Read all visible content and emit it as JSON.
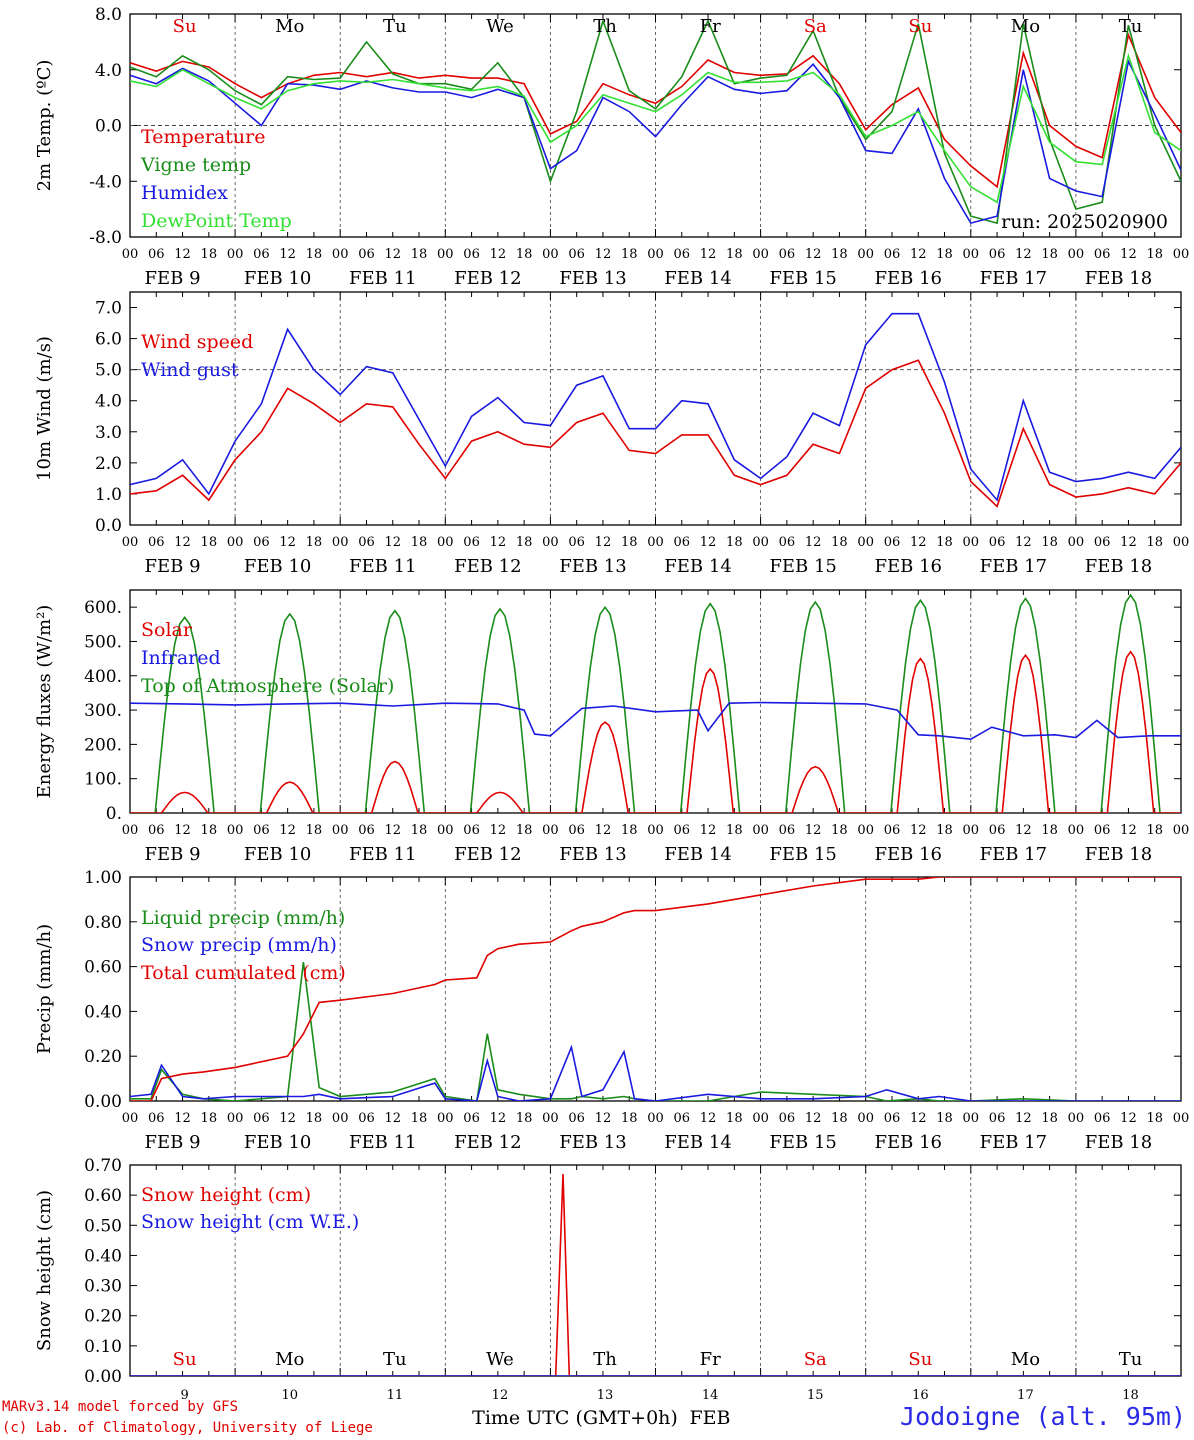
{
  "colors": {
    "red": "#e00000",
    "green": "#1a8c1a",
    "blue": "#1a1ae0",
    "lightgreen": "#33e033",
    "axis": "#000000",
    "grid": "#444444"
  },
  "days": [
    "Su",
    "Mo",
    "Tu",
    "We",
    "Th",
    "Fr",
    "Sa",
    "Su",
    "Mo",
    "Tu"
  ],
  "day_colors": [
    "#e00000",
    "#000000",
    "#000000",
    "#000000",
    "#000000",
    "#000000",
    "#e00000",
    "#e00000",
    "#000000",
    "#000000"
  ],
  "date_labels": [
    "FEB  9",
    "FEB 10",
    "FEB 11",
    "FEB 12",
    "FEB 13",
    "FEB 14",
    "FEB 15",
    "FEB 16",
    "FEB 17",
    "FEB 18"
  ],
  "hour_labels": [
    "00",
    "06",
    "12",
    "18"
  ],
  "day_numbers": [
    "9",
    "10",
    "11",
    "12",
    "13",
    "14",
    "15",
    "16",
    "17",
    "18"
  ],
  "run_label": "run: 2025020900",
  "footer": {
    "credit1": "MARv3.14 model forced by GFS",
    "credit2": "(c) Lab. of Climatology, University of Liege",
    "time_label": "Time UTC (GMT+0h)",
    "month": "FEB",
    "station": "Jodoigne (alt. 95m)"
  },
  "chart_data": [
    {
      "type": "line",
      "ylabel": "2m Temp. (ºC)",
      "ylim": [
        -8,
        8
      ],
      "yticks": [
        "8.0",
        "4.0",
        "0.0",
        "-4.0",
        "-8.0"
      ],
      "ytick_values": [
        8,
        4,
        0,
        -4,
        -8
      ],
      "ref_line": 0,
      "x_days": [
        0,
        0.25,
        0.5,
        0.75,
        1,
        1.25,
        1.5,
        1.75,
        2,
        2.25,
        2.5,
        2.75,
        3,
        3.25,
        3.5,
        3.75,
        4,
        4.25,
        4.5,
        4.75,
        5,
        5.25,
        5.5,
        5.75,
        6,
        6.25,
        6.5,
        6.75,
        7,
        7.25,
        7.5,
        7.75,
        8,
        8.25,
        8.5,
        8.75,
        9,
        9.25,
        9.5,
        9.75,
        10
      ],
      "series": [
        {
          "name": "Temperature",
          "color": "red",
          "values": [
            4.5,
            3.9,
            4.6,
            4.2,
            3.0,
            2.0,
            3.0,
            3.6,
            3.8,
            3.5,
            3.8,
            3.4,
            3.6,
            3.4,
            3.4,
            3.0,
            -0.6,
            0.3,
            3.0,
            2.2,
            1.6,
            2.8,
            4.7,
            3.8,
            3.6,
            3.7,
            5.0,
            3.0,
            -0.3,
            1.5,
            2.7,
            -1.0,
            -2.9,
            -4.4,
            5.2,
            0.0,
            -1.5,
            -2.3,
            6.5,
            2.0,
            -0.5
          ]
        },
        {
          "name": "Vigne temp",
          "color": "green",
          "values": [
            4.2,
            3.5,
            5.0,
            4.0,
            2.5,
            1.5,
            3.5,
            3.3,
            3.4,
            6.0,
            3.7,
            3.0,
            3.0,
            2.6,
            4.5,
            2.0,
            -4.0,
            1.0,
            7.5,
            2.5,
            1.2,
            3.5,
            7.5,
            3.0,
            3.4,
            3.6,
            6.8,
            2.0,
            -1.0,
            1.0,
            7.3,
            -2.0,
            -6.5,
            -7.0,
            7.3,
            -1.0,
            -6.0,
            -5.5,
            7.2,
            0.0,
            -4.0
          ]
        },
        {
          "name": "Humidex",
          "color": "blue",
          "values": [
            3.6,
            3.0,
            4.1,
            3.2,
            1.6,
            0.0,
            3.0,
            2.9,
            2.6,
            3.2,
            2.7,
            2.4,
            2.4,
            2.0,
            2.6,
            2.0,
            -3.1,
            -1.8,
            2.0,
            1.0,
            -0.8,
            1.5,
            3.5,
            2.6,
            2.3,
            2.5,
            4.4,
            2.0,
            -1.8,
            -2.0,
            1.2,
            -3.8,
            -7.0,
            -6.5,
            4.0,
            -3.8,
            -4.7,
            -5.1,
            4.6,
            0.8,
            -3.2
          ]
        },
        {
          "name": "DewPoint Temp",
          "color": "lightgreen",
          "values": [
            3.2,
            2.8,
            4.0,
            3.0,
            2.0,
            1.2,
            2.5,
            3.0,
            3.2,
            3.1,
            3.3,
            3.0,
            2.7,
            2.5,
            2.8,
            2.1,
            -1.2,
            0.0,
            2.2,
            1.6,
            1.0,
            2.2,
            3.8,
            3.1,
            3.1,
            3.2,
            3.8,
            2.2,
            -0.8,
            0.0,
            1.0,
            -1.8,
            -4.4,
            -5.5,
            2.8,
            -1.2,
            -2.6,
            -2.8,
            5.0,
            -0.5,
            -1.8
          ]
        }
      ]
    },
    {
      "type": "line",
      "ylabel": "10m Wind (m/s)",
      "ylim": [
        0,
        7.5
      ],
      "yticks": [
        "7.0",
        "6.0",
        "5.0",
        "4.0",
        "3.0",
        "2.0",
        "1.0",
        "0.0"
      ],
      "ytick_values": [
        7,
        6,
        5,
        4,
        3,
        2,
        1,
        0
      ],
      "ref_line": 5,
      "x_days": [
        0,
        0.25,
        0.5,
        0.75,
        1,
        1.25,
        1.5,
        1.75,
        2,
        2.25,
        2.5,
        2.75,
        3,
        3.25,
        3.5,
        3.75,
        4,
        4.25,
        4.5,
        4.75,
        5,
        5.25,
        5.5,
        5.75,
        6,
        6.25,
        6.5,
        6.75,
        7,
        7.25,
        7.5,
        7.75,
        8,
        8.25,
        8.5,
        8.75,
        9,
        9.25,
        9.5,
        9.75,
        10
      ],
      "series": [
        {
          "name": "Wind speed",
          "color": "red",
          "values": [
            1.0,
            1.1,
            1.6,
            0.8,
            2.1,
            3.0,
            4.4,
            3.9,
            3.3,
            3.9,
            3.8,
            2.6,
            1.5,
            2.7,
            3.0,
            2.6,
            2.5,
            3.3,
            3.6,
            2.4,
            2.3,
            2.9,
            2.9,
            1.6,
            1.3,
            1.6,
            2.6,
            2.3,
            4.4,
            5.0,
            5.3,
            3.6,
            1.4,
            0.6,
            3.1,
            1.3,
            0.9,
            1.0,
            1.2,
            1.0,
            2.0
          ]
        },
        {
          "name": "Wind gust",
          "color": "blue",
          "values": [
            1.3,
            1.5,
            2.1,
            1.0,
            2.7,
            3.9,
            6.3,
            5.0,
            4.2,
            5.1,
            4.9,
            3.4,
            1.9,
            3.5,
            4.1,
            3.3,
            3.2,
            4.5,
            4.8,
            3.1,
            3.1,
            4.0,
            3.9,
            2.1,
            1.5,
            2.2,
            3.6,
            3.2,
            5.8,
            6.8,
            6.8,
            4.6,
            1.8,
            0.8,
            4.0,
            1.7,
            1.4,
            1.5,
            1.7,
            1.5,
            2.5
          ]
        }
      ]
    },
    {
      "type": "line",
      "ylabel": "Energy fluxes (W/m²)",
      "ylim": [
        0,
        650
      ],
      "yticks": [
        "600.",
        "500.",
        "400.",
        "300.",
        "200.",
        "100.",
        "0."
      ],
      "ytick_values": [
        600,
        500,
        400,
        300,
        200,
        100,
        0
      ],
      "solar_peaks": [
        60,
        90,
        150,
        60,
        265,
        420,
        135,
        450,
        460,
        470
      ],
      "toa_peaks": [
        570,
        580,
        590,
        595,
        600,
        610,
        615,
        620,
        625,
        635
      ],
      "ir_x": [
        0,
        0.5,
        1,
        1.5,
        2,
        2.5,
        3,
        3.5,
        3.75,
        3.85,
        4,
        4.3,
        4.6,
        5,
        5.4,
        5.5,
        5.7,
        6,
        6.5,
        7,
        7.3,
        7.5,
        7.7,
        8,
        8.2,
        8.5,
        8.8,
        9,
        9.2,
        9.4,
        9.7,
        10
      ],
      "series": [
        {
          "name": "Solar",
          "color": "red"
        },
        {
          "name": "Infrared",
          "color": "blue",
          "values": [
            320,
            318,
            315,
            318,
            320,
            312,
            320,
            318,
            300,
            230,
            225,
            305,
            312,
            295,
            300,
            240,
            320,
            322,
            320,
            318,
            300,
            228,
            225,
            215,
            250,
            225,
            228,
            220,
            270,
            220,
            225,
            225
          ]
        },
        {
          "name": "Top of Atmosphere (Solar)",
          "color": "green"
        }
      ]
    },
    {
      "type": "line",
      "ylabel": "Precip (mm/h)",
      "ylim": [
        0,
        1.0
      ],
      "yticks": [
        "1.00",
        "0.80",
        "0.60",
        "0.40",
        "0.20",
        "0.00"
      ],
      "ytick_values": [
        1,
        0.8,
        0.6,
        0.4,
        0.2,
        0
      ],
      "x_days": [
        0,
        0.2,
        0.3,
        0.5,
        0.7,
        1,
        1.5,
        1.65,
        1.8,
        2,
        2.5,
        2.9,
        3,
        3.3,
        3.4,
        3.5,
        3.7,
        4,
        4.2,
        4.3,
        4.5,
        4.7,
        4.8,
        5,
        5.5,
        6,
        6.5,
        7,
        7.2,
        7.5,
        7.7,
        8,
        8.5,
        9,
        10
      ],
      "series": [
        {
          "name": "Liquid precip (mm/h)",
          "color": "green",
          "values": [
            0.01,
            0.01,
            0.14,
            0.03,
            0.01,
            0.0,
            0.02,
            0.62,
            0.06,
            0.02,
            0.04,
            0.1,
            0.02,
            0.0,
            0.3,
            0.05,
            0.03,
            0.01,
            0.01,
            0.02,
            0.01,
            0.02,
            0.01,
            0.0,
            0.0,
            0.04,
            0.03,
            0.02,
            0.0,
            0.01,
            0.0,
            0.0,
            0.01,
            0.0,
            0.0
          ]
        },
        {
          "name": "Snow precip (mm/h)",
          "color": "blue",
          "values": [
            0.02,
            0.03,
            0.16,
            0.02,
            0.01,
            0.02,
            0.02,
            0.02,
            0.03,
            0.01,
            0.02,
            0.08,
            0.01,
            0.0,
            0.18,
            0.02,
            0.0,
            0.01,
            0.24,
            0.02,
            0.05,
            0.22,
            0.01,
            0.0,
            0.03,
            0.01,
            0.01,
            0.02,
            0.05,
            0.01,
            0.02,
            0.0,
            0.0,
            0.0,
            0.0
          ]
        },
        {
          "name": "Total cumulated (cm)",
          "color": "red",
          "values": [
            0.0,
            0.0,
            0.1,
            0.12,
            0.13,
            0.15,
            0.2,
            0.3,
            0.44,
            0.45,
            0.48,
            0.52,
            0.54,
            0.55,
            0.65,
            0.68,
            0.7,
            0.71,
            0.76,
            0.78,
            0.8,
            0.84,
            0.85,
            0.85,
            0.88,
            0.92,
            0.96,
            0.99,
            0.99,
            0.99,
            1.0,
            1.0,
            1.0,
            1.0,
            1.0
          ]
        }
      ]
    },
    {
      "type": "line",
      "ylabel": "Snow height (cm)",
      "ylim": [
        0,
        0.7
      ],
      "yticks": [
        "0.70",
        "0.60",
        "0.50",
        "0.40",
        "0.30",
        "0.20",
        "0.10",
        "0.00"
      ],
      "ytick_values": [
        0.7,
        0.6,
        0.5,
        0.4,
        0.3,
        0.2,
        0.1,
        0
      ],
      "x_days": [
        0,
        4.05,
        4.12,
        4.18,
        10
      ],
      "series": [
        {
          "name": "Snow height (cm)",
          "color": "red",
          "values": [
            0,
            0,
            0.67,
            0,
            0
          ]
        },
        {
          "name": "Snow height (cm W.E.)",
          "color": "blue",
          "values": [
            0,
            0,
            0,
            0,
            0
          ]
        }
      ]
    }
  ]
}
